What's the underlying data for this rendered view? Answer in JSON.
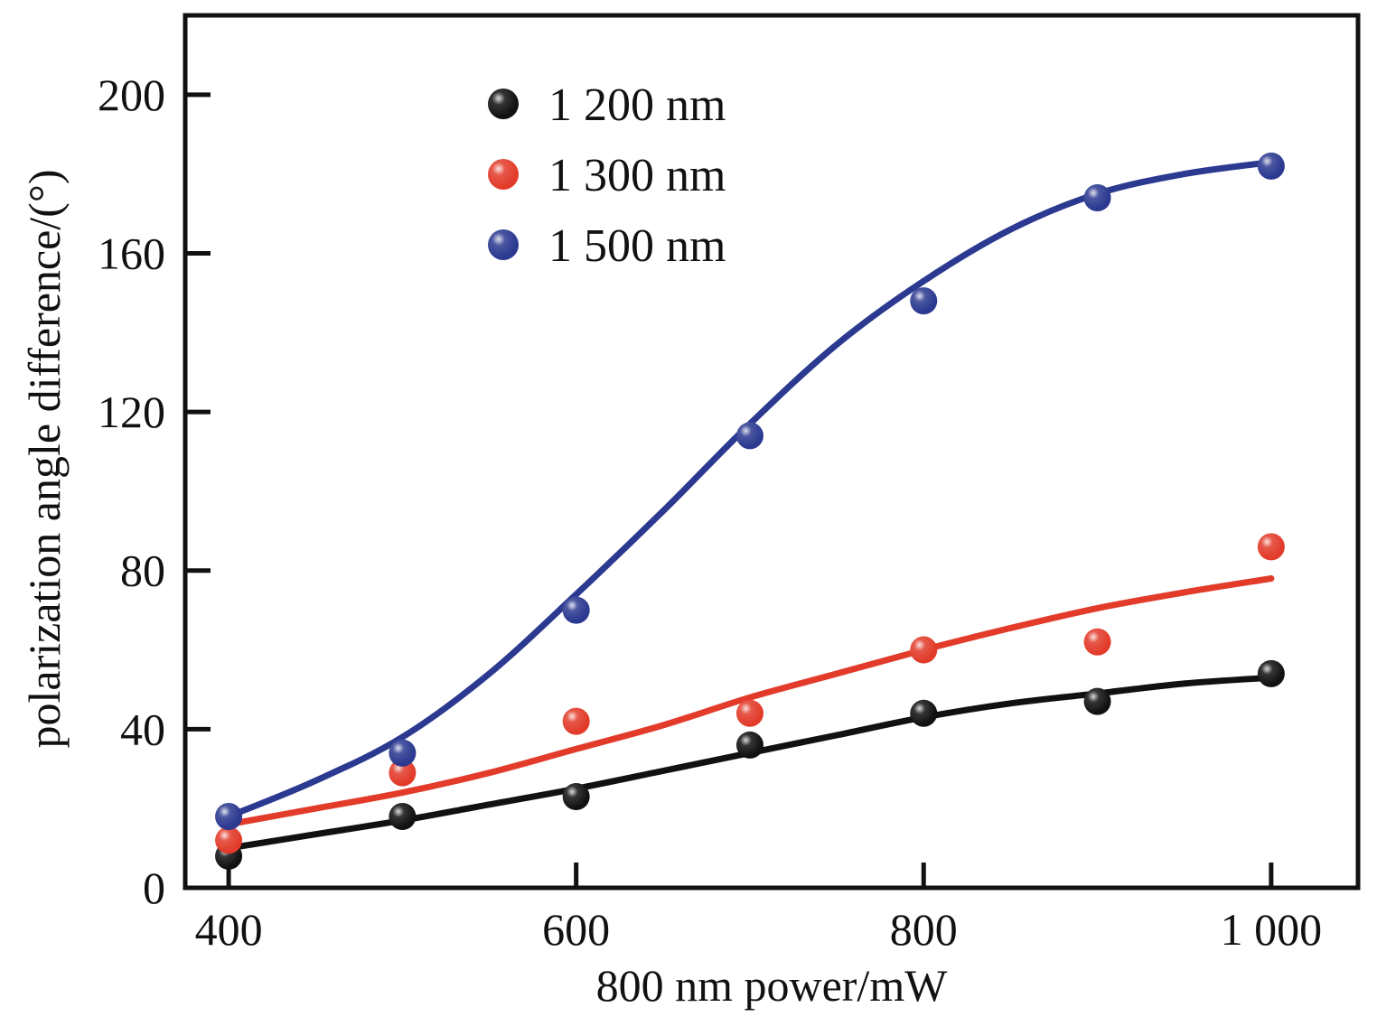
{
  "chart_data": {
    "type": "scatter",
    "title": "",
    "xlabel": "800 nm power/mW",
    "ylabel": "polarization angle difference/(°)",
    "xlim": [
      375,
      1050
    ],
    "ylim": [
      0,
      220
    ],
    "xticks": [
      400,
      600,
      800,
      1000
    ],
    "xtick_labels": [
      "400",
      "600",
      "800",
      "1 000"
    ],
    "yticks": [
      0,
      40,
      80,
      120,
      160,
      200
    ],
    "ytick_labels": [
      "0",
      "40",
      "80",
      "120",
      "160",
      "200"
    ],
    "grid": false,
    "legend_position": "top-left",
    "series": [
      {
        "name": "1 200 nm",
        "color": "#111111",
        "points": [
          [
            400,
            8
          ],
          [
            500,
            18
          ],
          [
            600,
            23
          ],
          [
            700,
            36
          ],
          [
            800,
            44
          ],
          [
            900,
            47
          ],
          [
            1000,
            54
          ]
        ],
        "fit": [
          [
            400,
            10
          ],
          [
            450,
            13.5
          ],
          [
            500,
            17
          ],
          [
            550,
            21
          ],
          [
            600,
            25
          ],
          [
            650,
            29.5
          ],
          [
            700,
            34
          ],
          [
            750,
            38.5
          ],
          [
            800,
            43
          ],
          [
            850,
            46.5
          ],
          [
            900,
            49
          ],
          [
            950,
            51.5
          ],
          [
            1000,
            53
          ]
        ]
      },
      {
        "name": "1 300 nm",
        "color": "#e23b2a",
        "points": [
          [
            400,
            12
          ],
          [
            500,
            29
          ],
          [
            600,
            42
          ],
          [
            700,
            44
          ],
          [
            800,
            60
          ],
          [
            900,
            62
          ],
          [
            1000,
            86
          ]
        ],
        "fit": [
          [
            400,
            16
          ],
          [
            450,
            20
          ],
          [
            500,
            24
          ],
          [
            550,
            29
          ],
          [
            600,
            35
          ],
          [
            650,
            41
          ],
          [
            700,
            48
          ],
          [
            750,
            54
          ],
          [
            800,
            60
          ],
          [
            850,
            65.5
          ],
          [
            900,
            70.5
          ],
          [
            950,
            74.5
          ],
          [
            1000,
            78
          ]
        ]
      },
      {
        "name": "1 500 nm",
        "color": "#2b3990",
        "points": [
          [
            400,
            18
          ],
          [
            500,
            34
          ],
          [
            600,
            70
          ],
          [
            700,
            114
          ],
          [
            800,
            148
          ],
          [
            900,
            174
          ],
          [
            1000,
            182
          ]
        ],
        "fit": [
          [
            400,
            18
          ],
          [
            450,
            27
          ],
          [
            500,
            38
          ],
          [
            550,
            54
          ],
          [
            600,
            74
          ],
          [
            650,
            95
          ],
          [
            700,
            117
          ],
          [
            750,
            137
          ],
          [
            800,
            153
          ],
          [
            850,
            166
          ],
          [
            900,
            175
          ],
          [
            950,
            180
          ],
          [
            1000,
            183
          ]
        ]
      }
    ]
  }
}
